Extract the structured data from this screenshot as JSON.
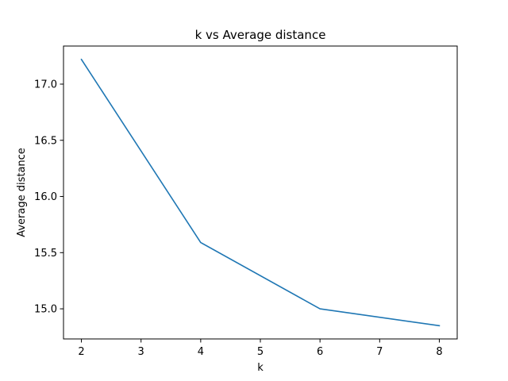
{
  "chart_data": {
    "type": "line",
    "title": "k vs Average distance",
    "xlabel": "k",
    "ylabel": "Average distance",
    "x": [
      2,
      4,
      6,
      8
    ],
    "series": [
      {
        "values": [
          17.22,
          15.59,
          15.0,
          14.85
        ],
        "color": "#1f77b4"
      }
    ],
    "xlim": [
      1.7,
      8.3
    ],
    "ylim": [
      14.732,
      17.339
    ],
    "xticks": [
      2,
      3,
      4,
      5,
      6,
      7,
      8
    ],
    "yticks": [
      15.0,
      15.5,
      16.0,
      16.5,
      17.0
    ],
    "ytick_labels": [
      "15.0",
      "15.5",
      "16.0",
      "16.5",
      "17.0"
    ],
    "grid": false,
    "legend": "none"
  }
}
